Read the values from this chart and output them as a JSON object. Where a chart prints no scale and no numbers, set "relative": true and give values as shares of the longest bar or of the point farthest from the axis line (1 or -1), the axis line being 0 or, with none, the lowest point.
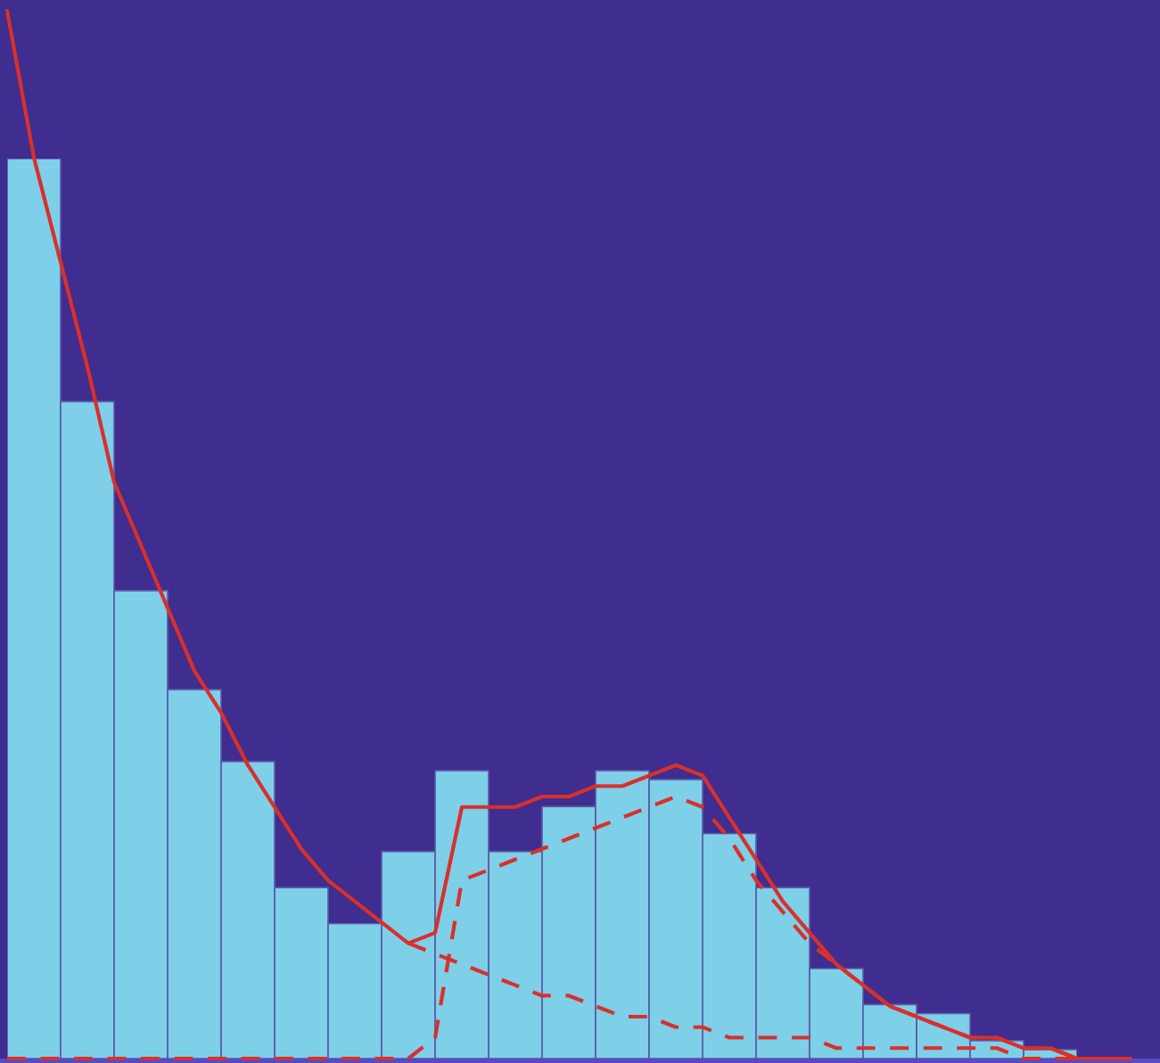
{
  "chart_data": [
    {
      "type": "bar",
      "relative": true,
      "color": "#7ecfe8",
      "categories": [
        null,
        null,
        null,
        null,
        null,
        null,
        null,
        null,
        null,
        null,
        null,
        null,
        null,
        null,
        null,
        null,
        null,
        null,
        null,
        null
      ],
      "values": [
        1,
        0.73,
        0.52,
        0.41,
        0.33,
        0.19,
        0.15,
        0.23,
        0.32,
        0.23,
        0.28,
        0.32,
        0.31,
        0.25,
        0.19,
        0.1,
        0.06,
        0.05,
        0.02,
        0.01
      ]
    },
    {
      "type": "line",
      "relative": true,
      "categories": [
        null,
        null,
        null,
        null,
        null,
        null,
        null,
        null,
        null,
        null,
        null,
        null,
        null,
        null,
        null,
        null,
        null,
        null,
        null,
        null,
        null,
        null,
        null,
        null,
        null,
        null,
        null,
        null,
        null,
        null,
        null,
        null,
        null,
        null,
        null,
        null,
        null,
        null,
        null,
        null,
        null,
        null,
        null
      ],
      "series": [
        {
          "color": "#d9302a",
          "line_style": "solid",
          "values": [
            1.0,
            0.86,
            0.76,
            0.66,
            0.55,
            0.49,
            0.43,
            0.37,
            0.33,
            0.28,
            0.24,
            0.2,
            0.17,
            0.15,
            0.13,
            0.11,
            0.12,
            0.24,
            0.24,
            0.24,
            0.25,
            0.25,
            0.26,
            0.26,
            0.27,
            0.28,
            0.27,
            0.23,
            0.19,
            0.15,
            0.12,
            0.09,
            0.07,
            0.05,
            0.04,
            0.03,
            0.02,
            0.02,
            0.01,
            0.01,
            0,
            0,
            0
          ]
        },
        {
          "color": "#d9302a",
          "line_style": "dashed",
          "values": [
            null,
            null,
            null,
            null,
            null,
            null,
            null,
            null,
            null,
            null,
            null,
            null,
            null,
            null,
            null,
            0.11,
            0.1,
            0.09,
            0.08,
            0.07,
            0.06,
            0.06,
            0.05,
            0.04,
            0.04,
            0.03,
            0.03,
            0.02,
            0.02,
            0.02,
            0.02,
            0.01,
            0.01,
            0.01,
            0.01,
            0.01,
            0.01,
            0.01,
            0,
            0,
            0,
            0,
            0
          ]
        },
        {
          "color": "#d9302a",
          "line_style": "dashed",
          "values": [
            0,
            0,
            0,
            0,
            0,
            0,
            0,
            0,
            0,
            0,
            0,
            0,
            0,
            0,
            0,
            0,
            0.02,
            0.17,
            0.18,
            0.19,
            0.2,
            0.21,
            0.22,
            0.23,
            0.24,
            0.25,
            0.24,
            0.21,
            0.17,
            0.14,
            0.11,
            0.09,
            0.07,
            0.05,
            0.04,
            0.03,
            0.02,
            0.02,
            0.01,
            0.01,
            0,
            0,
            0
          ]
        }
      ]
    }
  ]
}
